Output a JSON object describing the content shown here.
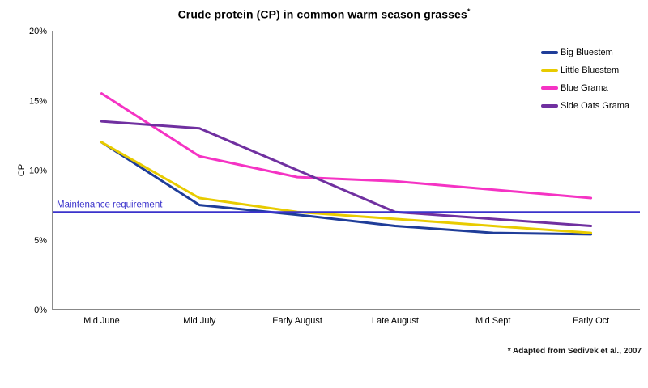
{
  "chart_data": {
    "type": "line",
    "title": "Crude protein (CP) in common warm season grasses",
    "title_superscript": "*",
    "ylabel": "CP",
    "categories": [
      "Mid June",
      "Mid July",
      "Early August",
      "Late August",
      "Mid Sept",
      "Early Oct"
    ],
    "y_axis": {
      "min": 0,
      "max": 20,
      "tick_step": 5,
      "tick_labels": [
        "0%",
        "5%",
        "10%",
        "15%",
        "20%"
      ]
    },
    "series": [
      {
        "name": "Big Bluestem",
        "color": "#1F3D99",
        "values": [
          12,
          7.5,
          6.8,
          6,
          5.5,
          5.4
        ]
      },
      {
        "name": "Little Bluestem",
        "color": "#E8CB00",
        "values": [
          12,
          8,
          7,
          6.5,
          6,
          5.5
        ]
      },
      {
        "name": "Blue Grama",
        "color": "#F533C4",
        "values": [
          15.5,
          11,
          9.5,
          9.2,
          8.6,
          8
        ]
      },
      {
        "name": "Side Oats Grama",
        "color": "#7030A0",
        "values": [
          13.5,
          13,
          10,
          7,
          6.5,
          6
        ]
      }
    ],
    "reference_line": {
      "label": "Maintenance requirement",
      "value": 7,
      "color": "#3B33CC"
    },
    "legend_position": "top-right",
    "grid": false,
    "axis_color": "#404040",
    "footnote": "* Adapted from Sedivek et al., 2007"
  }
}
